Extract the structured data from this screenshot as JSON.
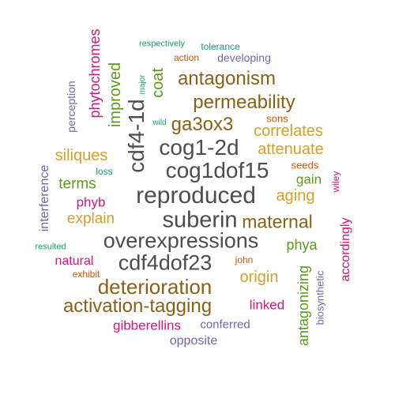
{
  "palette": {
    "dark_gray": "#4d4d4d",
    "brown": "#8a6114",
    "orange": "#d4a02a",
    "green": "#5c9a1c",
    "pink": "#d4157a",
    "purple": "#7067ab",
    "rust": "#d35400",
    "teal": "#1b9e77"
  },
  "words": [
    {
      "text": "reproduced",
      "color": "#4d4d4d"
    },
    {
      "text": "suberin",
      "color": "#4d4d4d"
    },
    {
      "text": "overexpressions",
      "color": "#4d4d4d"
    },
    {
      "text": "cog1dof15",
      "color": "#4d4d4d"
    },
    {
      "text": "cog1-2d",
      "color": "#4d4d4d"
    },
    {
      "text": "cdf4dof23",
      "color": "#4d4d4d"
    },
    {
      "text": "cdf4-1d",
      "color": "#4d4d4d"
    },
    {
      "text": "deterioration",
      "color": "#8a6114"
    },
    {
      "text": "activation-tagging",
      "color": "#8a6114"
    },
    {
      "text": "antagonism",
      "color": "#8a6114"
    },
    {
      "text": "permeability",
      "color": "#8a6114"
    },
    {
      "text": "ga3ox3",
      "color": "#8a6114"
    },
    {
      "text": "maternal",
      "color": "#8a6114"
    },
    {
      "text": "aging",
      "color": "#d4a02a"
    },
    {
      "text": "explain",
      "color": "#d4a02a"
    },
    {
      "text": "siliques",
      "color": "#d4a02a"
    },
    {
      "text": "attenuate",
      "color": "#d4a02a"
    },
    {
      "text": "correlates",
      "color": "#d4a02a"
    },
    {
      "text": "origin",
      "color": "#d4a02a"
    },
    {
      "text": "terms",
      "color": "#5c9a1c"
    },
    {
      "text": "phya",
      "color": "#5c9a1c"
    },
    {
      "text": "gain",
      "color": "#5c9a1c"
    },
    {
      "text": "coat",
      "color": "#5c9a1c"
    },
    {
      "text": "improved",
      "color": "#5c9a1c"
    },
    {
      "text": "antagonizing",
      "color": "#5c9a1c"
    },
    {
      "text": "phytochromes",
      "color": "#d4157a"
    },
    {
      "text": "phyb",
      "color": "#d4157a"
    },
    {
      "text": "natural",
      "color": "#d4157a"
    },
    {
      "text": "linked",
      "color": "#d4157a"
    },
    {
      "text": "gibberellins",
      "color": "#d4157a"
    },
    {
      "text": "accordingly",
      "color": "#d4157a"
    },
    {
      "text": "wiley",
      "color": "#d4157a"
    },
    {
      "text": "perception",
      "color": "#7067ab"
    },
    {
      "text": "interference",
      "color": "#7067ab"
    },
    {
      "text": "conferred",
      "color": "#7067ab"
    },
    {
      "text": "opposite",
      "color": "#7067ab"
    },
    {
      "text": "developing",
      "color": "#7067ab"
    },
    {
      "text": "biosynthetic",
      "color": "#7067ab"
    },
    {
      "text": "action",
      "color": "#d35400"
    },
    {
      "text": "sons",
      "color": "#d35400"
    },
    {
      "text": "seeds",
      "color": "#d35400"
    },
    {
      "text": "john",
      "color": "#d35400"
    },
    {
      "text": "exhibit",
      "color": "#d35400"
    },
    {
      "text": "respectively",
      "color": "#1b9e77"
    },
    {
      "text": "tolerance",
      "color": "#1b9e77"
    },
    {
      "text": "major",
      "color": "#1b9e77"
    },
    {
      "text": "wild",
      "color": "#1b9e77"
    },
    {
      "text": "loss",
      "color": "#1b9e77"
    },
    {
      "text": "resulted",
      "color": "#1b9e77"
    }
  ]
}
